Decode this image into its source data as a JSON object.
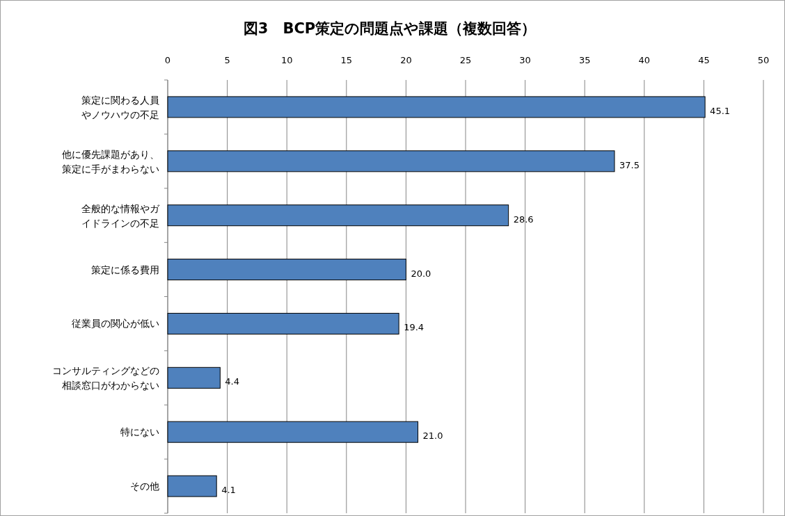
{
  "chart_data": {
    "type": "bar",
    "orientation": "horizontal",
    "title": "図3　BCP策定の問題点や課題（複数回答）",
    "categories": [
      "策定に関わる人員やノウハウの不足",
      "他に優先課題があり、策定に手がまわらない",
      "全般的な情報やガイドラインの不足",
      "策定に係る費用",
      "従業員の関心が低い",
      "コンサルティングなどの相談窓口がわからない",
      "特にない",
      "その他"
    ],
    "values": [
      45.1,
      37.5,
      28.6,
      20.0,
      19.4,
      4.4,
      21.0,
      4.1
    ],
    "value_labels": [
      "45.1",
      "37.5",
      "28.6",
      "20.0",
      "19.4",
      "4.4",
      "21.0",
      "4.1"
    ],
    "color": "#4f81bd",
    "xlim": [
      0,
      50
    ],
    "xticks": [
      0,
      5,
      10,
      15,
      20,
      25,
      30,
      35,
      40,
      45,
      50
    ],
    "grid": "x"
  }
}
